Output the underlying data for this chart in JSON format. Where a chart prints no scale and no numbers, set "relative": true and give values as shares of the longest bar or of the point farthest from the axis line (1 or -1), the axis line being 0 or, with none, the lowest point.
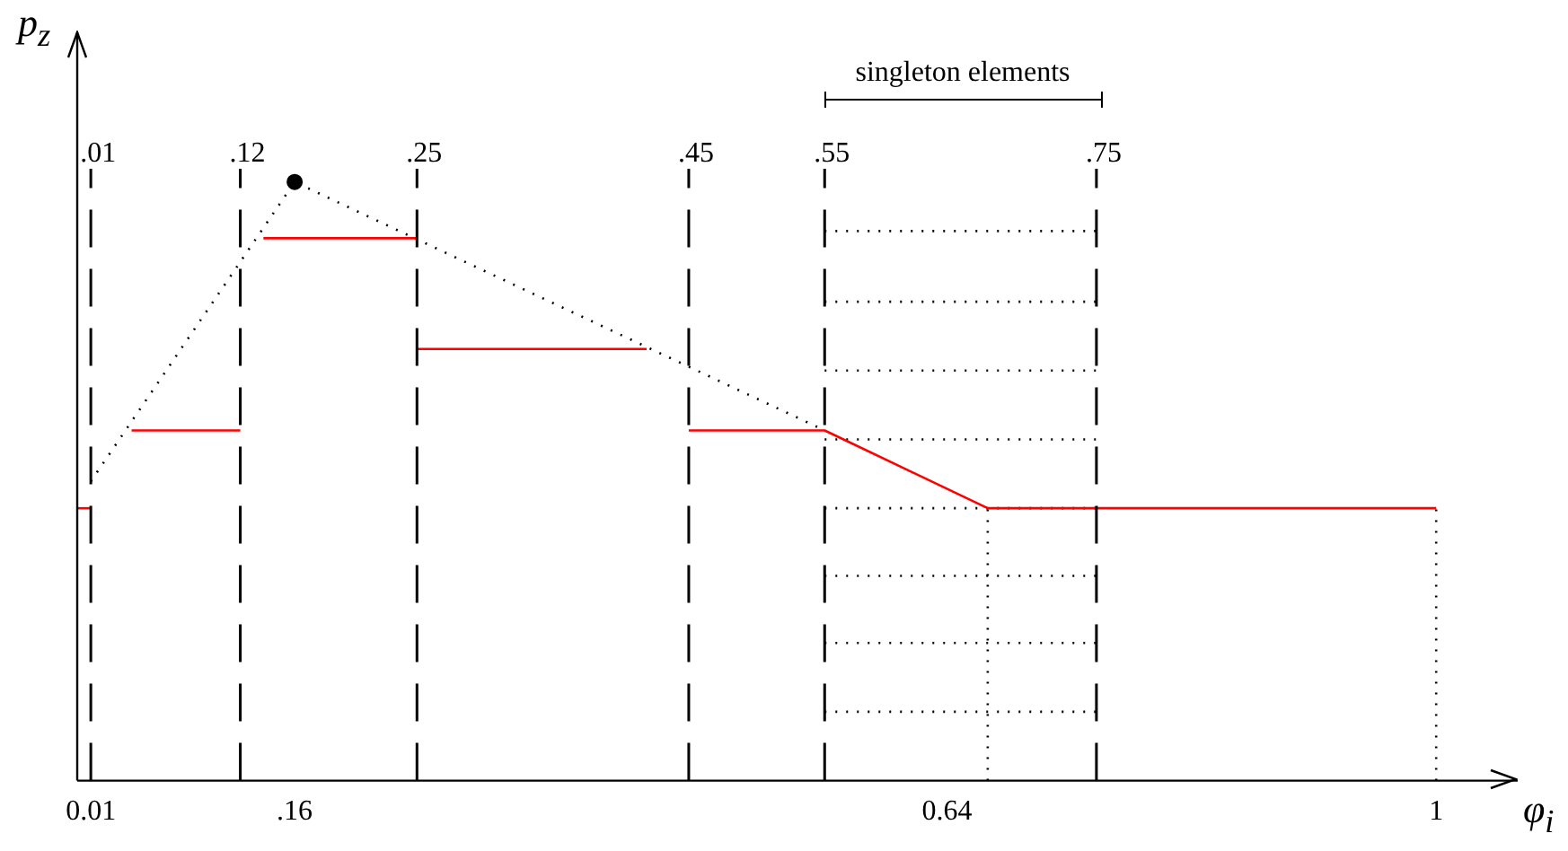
{
  "chart_data": {
    "type": "line",
    "relative": true,
    "xlabel": "φ$_{i}$",
    "ylabel": "p$_{z}$",
    "xlim": [
      0,
      1.06
    ],
    "xticks": [
      {
        "value": 0.01,
        "label": "0.01"
      },
      {
        "value": 0.16,
        "label": ".16"
      },
      {
        "value": 0.64,
        "label": "0.64"
      },
      1
    ],
    "grid": false,
    "legend": false,
    "marker": "none",
    "series": [
      {
        "color": "#ff0000",
        "line_style": "solid",
        "x": [
          0,
          0.01
        ],
        "values": [
          0.455,
          0.455
        ]
      },
      {
        "color": "#ff0000",
        "line_style": "solid",
        "x": [
          0.04,
          0.12
        ],
        "values": [
          0.585,
          0.585
        ]
      },
      {
        "color": "#ff0000",
        "line_style": "solid",
        "x": [
          0.137,
          0.25
        ],
        "values": [
          0.906,
          0.906
        ]
      },
      {
        "color": "#ff0000",
        "line_style": "solid",
        "x": [
          0.25,
          0.419
        ],
        "values": [
          0.721,
          0.721
        ]
      },
      {
        "color": "#ff0000",
        "line_style": "solid",
        "x": [
          0.45,
          0.55,
          0.67,
          1
        ],
        "values": [
          0.585,
          0.585,
          0.455,
          0.455
        ]
      },
      {
        "color": "#000000",
        "line_style": "dotted",
        "x": [
          0.01,
          0.16,
          0.55
        ],
        "values": [
          0.5,
          1,
          0.585
        ]
      },
      {
        "type": "scatter",
        "color": "#000000",
        "marker": "circle",
        "x": [
          0.16
        ],
        "values": [
          1
        ]
      },
      {
        "color": "#000000",
        "line_style": "dotted",
        "x": [
          0.67,
          0.67
        ],
        "values": [
          0,
          0.455
        ]
      },
      {
        "color": "#000000",
        "line_style": "dotted",
        "x": [
          1,
          1
        ],
        "values": [
          0,
          0.455
        ]
      },
      {
        "color": "#000000",
        "line_style": "dotted",
        "x": [
          0.55,
          0.75
        ],
        "values": [
          0.918,
          0.918
        ]
      },
      {
        "color": "#000000",
        "line_style": "dotted",
        "x": [
          0.55,
          0.75
        ],
        "values": [
          0.8,
          0.8
        ]
      },
      {
        "color": "#000000",
        "line_style": "dotted",
        "x": [
          0.55,
          0.75
        ],
        "values": [
          0.685,
          0.685
        ]
      },
      {
        "color": "#000000",
        "line_style": "dotted",
        "x": [
          0.55,
          0.75
        ],
        "values": [
          0.57,
          0.57
        ]
      },
      {
        "color": "#000000",
        "line_style": "dotted",
        "x": [
          0.55,
          0.75
        ],
        "values": [
          0.455,
          0.455
        ]
      },
      {
        "color": "#000000",
        "line_style": "dotted",
        "x": [
          0.55,
          0.75
        ],
        "values": [
          0.342,
          0.342
        ]
      },
      {
        "color": "#000000",
        "line_style": "dotted",
        "x": [
          0.55,
          0.75
        ],
        "values": [
          0.23,
          0.23
        ]
      },
      {
        "color": "#000000",
        "line_style": "dotted",
        "x": [
          0.55,
          0.75
        ],
        "values": [
          0.115,
          0.115
        ]
      }
    ],
    "ref_lines": [
      {
        "axis": "x",
        "value": 0.01,
        "label": ".01",
        "line_style": "dashed",
        "color": "#000000"
      },
      {
        "axis": "x",
        "value": 0.12,
        "label": ".12",
        "line_style": "dashed",
        "color": "#000000"
      },
      {
        "axis": "x",
        "value": 0.25,
        "label": ".25",
        "line_style": "dashed",
        "color": "#000000"
      },
      {
        "axis": "x",
        "value": 0.45,
        "label": ".45",
        "line_style": "dashed",
        "color": "#000000"
      },
      {
        "axis": "x",
        "value": 0.55,
        "label": ".55",
        "line_style": "dashed",
        "color": "#000000"
      },
      {
        "axis": "x",
        "value": 0.75,
        "label": ".75",
        "line_style": "dashed",
        "color": "#000000"
      }
    ],
    "annotations": [
      "singleton elements"
    ]
  }
}
